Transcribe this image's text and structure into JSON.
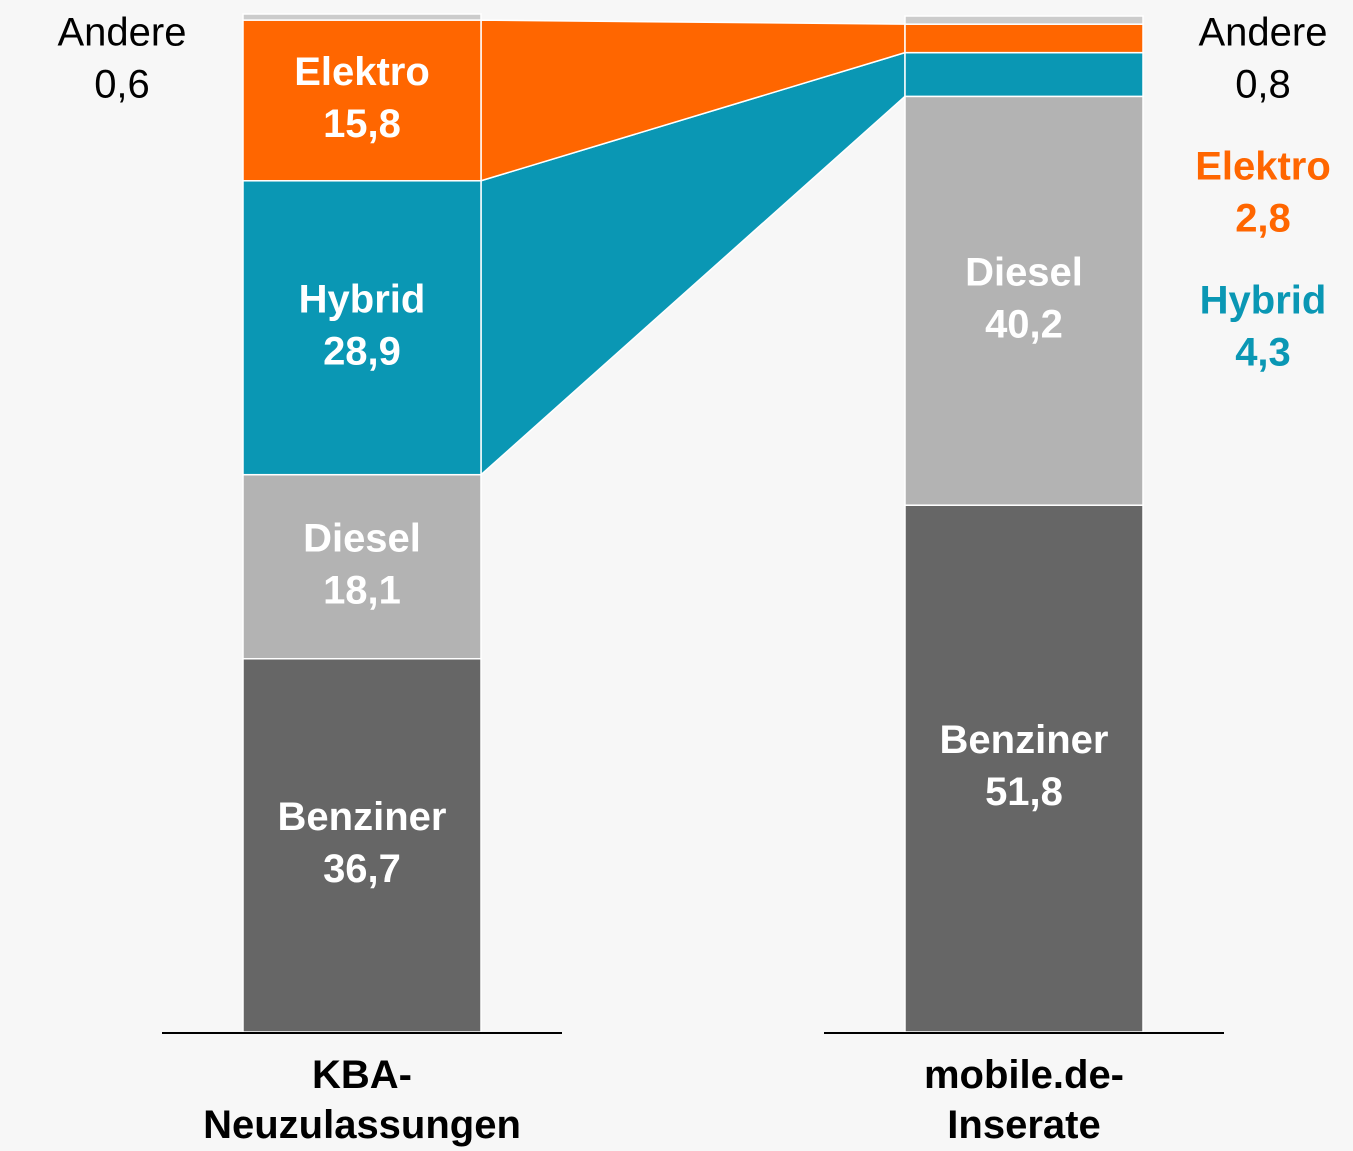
{
  "chart_data": {
    "type": "stacked_bar_flow",
    "categories": [
      "KBA-\nNeuzulassungen",
      "mobile.de-\nInserate"
    ],
    "ylim": [
      0,
      100
    ],
    "series": [
      {
        "name": "Benziner",
        "color": "#666666",
        "label_color": "#ffffff",
        "values": [
          36.7,
          51.8
        ],
        "value_labels": [
          "36,7",
          "51,8"
        ]
      },
      {
        "name": "Diesel",
        "color": "#b3b3b3",
        "label_color": "#ffffff",
        "values": [
          18.1,
          40.2
        ],
        "value_labels": [
          "18,1",
          "40,2"
        ]
      },
      {
        "name": "Hybrid",
        "color": "#0a97b4",
        "label_color": "#0a97b4",
        "connect": true,
        "values": [
          28.9,
          4.3
        ],
        "value_labels": [
          "28,9",
          "4,3"
        ]
      },
      {
        "name": "Elektro",
        "color": "#ff6600",
        "label_color": "#ff6600",
        "connect": true,
        "values": [
          15.8,
          2.8
        ],
        "value_labels": [
          "15,8",
          "2,8"
        ]
      },
      {
        "name": "Andere",
        "color": "#cccccc",
        "label_color": "#000000",
        "values": [
          0.6,
          0.8
        ],
        "value_labels": [
          "0,6",
          "0,8"
        ]
      }
    ]
  }
}
